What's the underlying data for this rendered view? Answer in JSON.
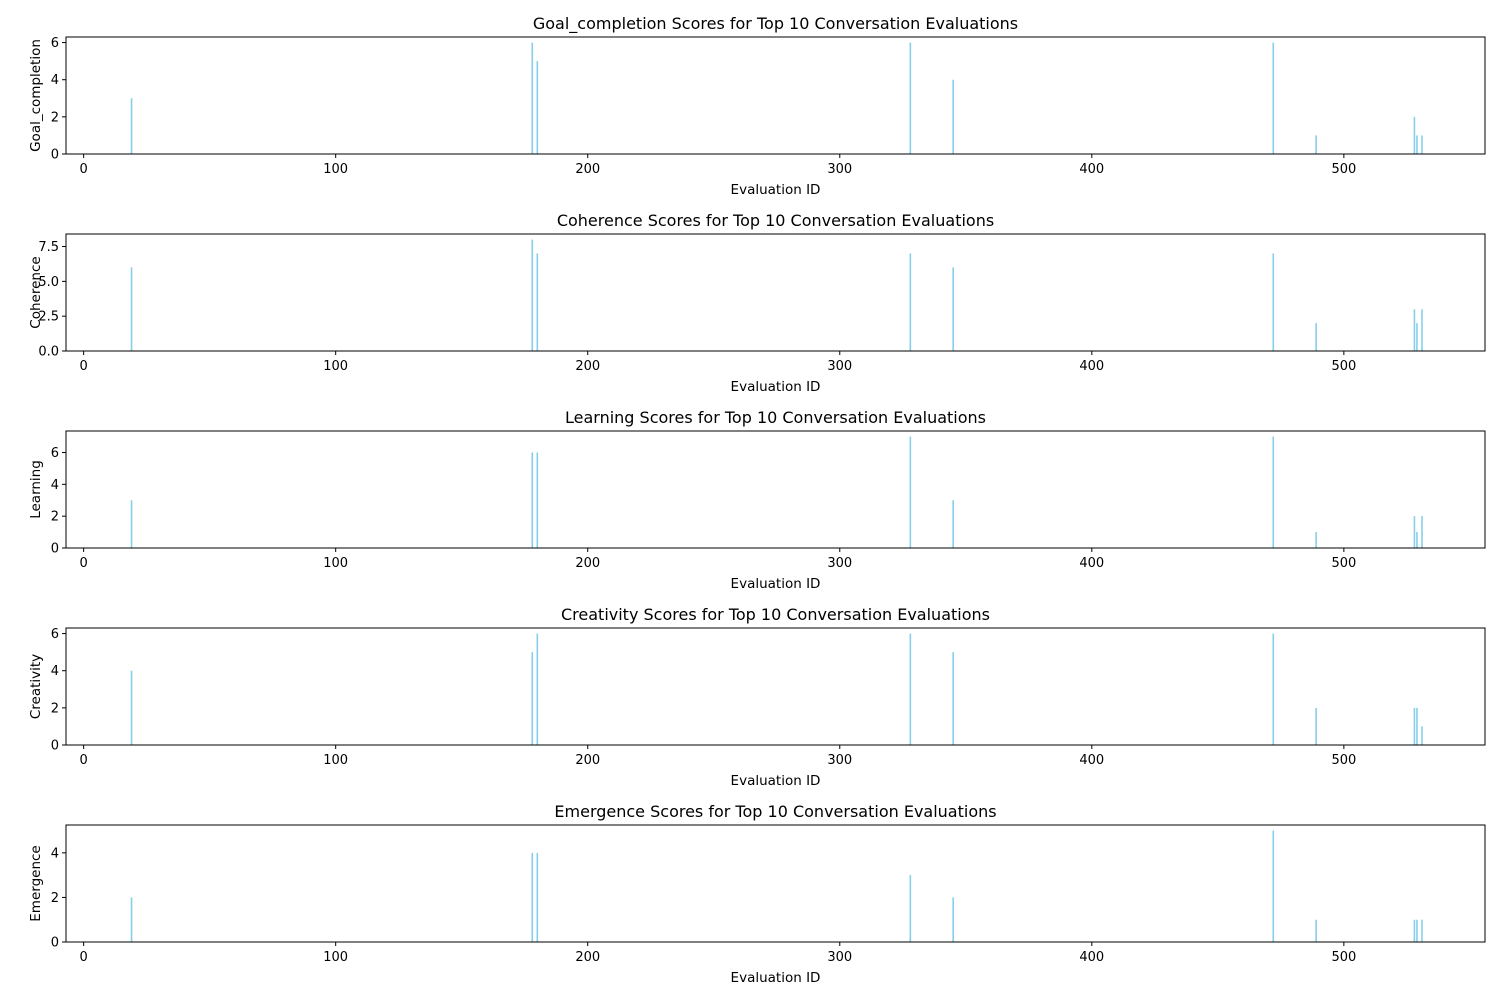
{
  "chart_data": {
    "type": "bar",
    "xlabel": "Evaluation ID",
    "xlim": [
      -7,
      556
    ],
    "xticks": [
      0,
      100,
      200,
      300,
      400,
      500
    ],
    "bar_color": "#87ceeb",
    "ids": [
      19,
      178,
      180,
      328,
      345,
      472,
      489,
      528,
      529,
      531
    ],
    "subplots": [
      {
        "title": "Goal_completion Scores for Top 10 Conversation Evaluations",
        "ylabel": "Goal_completion",
        "ylim": [
          0,
          6.3
        ],
        "yticks": [
          "0",
          "2",
          "4",
          "6"
        ],
        "values": [
          3,
          6,
          5,
          6,
          4,
          6,
          1,
          2,
          1,
          1
        ]
      },
      {
        "title": "Coherence Scores for Top 10 Conversation Evaluations",
        "ylabel": "Coherence",
        "ylim": [
          0,
          8.4
        ],
        "yticks": [
          "0.0",
          "2.5",
          "5.0",
          "7.5"
        ],
        "values": [
          6,
          8,
          7,
          7,
          6,
          7,
          2,
          3,
          2,
          3
        ]
      },
      {
        "title": "Learning Scores for Top 10 Conversation Evaluations",
        "ylabel": "Learning",
        "ylim": [
          0,
          7.35
        ],
        "yticks": [
          "0",
          "2",
          "4",
          "6"
        ],
        "values": [
          3,
          6,
          6,
          7,
          3,
          7,
          1,
          2,
          1,
          2
        ]
      },
      {
        "title": "Creativity Scores for Top 10 Conversation Evaluations",
        "ylabel": "Creativity",
        "ylim": [
          0,
          6.3
        ],
        "yticks": [
          "0",
          "2",
          "4",
          "6"
        ],
        "values": [
          4,
          5,
          6,
          6,
          5,
          6,
          2,
          2,
          2,
          1
        ]
      },
      {
        "title": "Emergence Scores for Top 10 Conversation Evaluations",
        "ylabel": "Emergence",
        "ylim": [
          0,
          5.25
        ],
        "yticks": [
          "0",
          "2",
          "4"
        ],
        "values": [
          2,
          4,
          4,
          3,
          2,
          5,
          1,
          1,
          1,
          1
        ]
      }
    ]
  }
}
